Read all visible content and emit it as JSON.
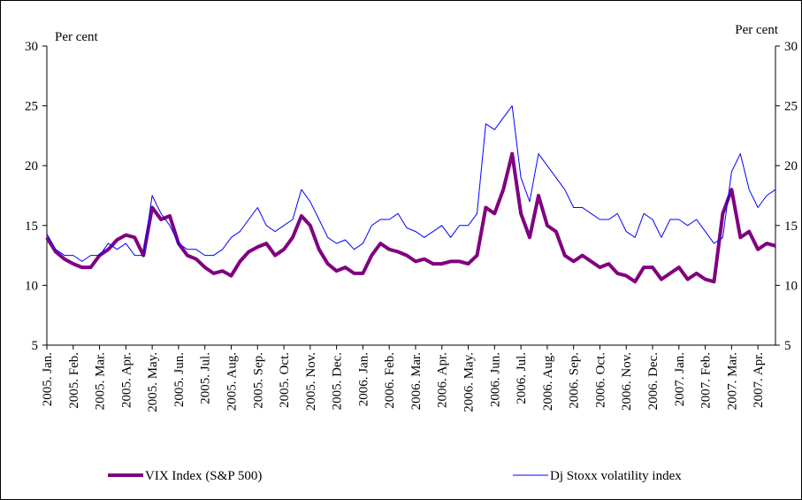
{
  "chart_data": {
    "type": "line",
    "y_label": "Per cent",
    "y2_label": "Per cent",
    "categories": [
      "2005. Jan.",
      null,
      null,
      "2005. Feb.",
      null,
      null,
      "2005. Mar.",
      null,
      null,
      "2005. Apr.",
      null,
      null,
      "2005. May.",
      null,
      null,
      "2005. Jun.",
      null,
      null,
      "2005. Jul.",
      null,
      null,
      "2005. Aug.",
      null,
      null,
      "2005. Sep.",
      null,
      null,
      "2005. Oct.",
      null,
      null,
      "2005. Nov.",
      null,
      null,
      "2005. Dec.",
      null,
      null,
      "2006. Jan.",
      null,
      null,
      "2006. Feb.",
      null,
      null,
      "2006. Mar.",
      null,
      null,
      "2006. Apr.",
      null,
      null,
      "2006. May.",
      null,
      null,
      "2006. Jun.",
      null,
      null,
      "2006. Jul.",
      null,
      null,
      "2006. Aug.",
      null,
      null,
      "2006. Sep.",
      null,
      null,
      "2006. Oct.",
      null,
      null,
      "2006. Nov.",
      null,
      null,
      "2006. Dec.",
      null,
      null,
      "2007. Jan.",
      null,
      null,
      "2007. Feb.",
      null,
      null,
      "2007. Mar.",
      null,
      null,
      "2007. Apr.",
      null,
      null
    ],
    "series": [
      {
        "name": "VIX Index (S&P 500)",
        "color": "#800080",
        "width": 4,
        "values": [
          14,
          12.8,
          12.2,
          11.8,
          11.5,
          11.5,
          12.5,
          13,
          13.8,
          14.2,
          14,
          12.5,
          16.5,
          15.5,
          15.8,
          13.5,
          12.5,
          12.2,
          11.5,
          11,
          11.2,
          10.8,
          12,
          12.8,
          13.2,
          13.5,
          12.5,
          13,
          14,
          15.8,
          15,
          13,
          11.8,
          11.2,
          11.5,
          11,
          11,
          12.5,
          13.5,
          13,
          12.8,
          12.5,
          12,
          12.2,
          11.8,
          11.8,
          12,
          12,
          11.8,
          12.5,
          16.5,
          16,
          18,
          21,
          16,
          14,
          17.5,
          15,
          14.5,
          12.5,
          12,
          12.5,
          12,
          11.5,
          11.8,
          11,
          10.8,
          10.3,
          11.5,
          11.5,
          10.5,
          11,
          11.5,
          10.5,
          11,
          10.5,
          10.3,
          16,
          18,
          14,
          14.5,
          13,
          13.5,
          13.3
        ]
      },
      {
        "name": "Dj Stoxx volatility index",
        "color": "#0000ff",
        "width": 1,
        "values": [
          14.3,
          13,
          12.5,
          12.5,
          12,
          12.5,
          12.5,
          13.5,
          13,
          13.5,
          12.5,
          12.5,
          17.5,
          16,
          15,
          13.5,
          13,
          13,
          12.5,
          12.5,
          13,
          14,
          14.5,
          15.5,
          16.5,
          15,
          14.5,
          15,
          15.5,
          18,
          17,
          15.5,
          14,
          13.5,
          13.8,
          13,
          13.5,
          15,
          15.5,
          15.5,
          16,
          14.8,
          14.5,
          14,
          14.5,
          15,
          14,
          15,
          15,
          16,
          23.5,
          23,
          24,
          25,
          19,
          17,
          21,
          20,
          19,
          18,
          16.5,
          16.5,
          16,
          15.5,
          15.5,
          16,
          14.5,
          14,
          16,
          15.5,
          14,
          15.5,
          15.5,
          15,
          15.5,
          14.5,
          13.5,
          14,
          19.5,
          21,
          18,
          16.5,
          17.5,
          18
        ]
      }
    ],
    "ylim": [
      5,
      30
    ],
    "yticks": [
      5,
      10,
      15,
      20,
      25,
      30
    ],
    "y2lim": [
      5,
      30
    ],
    "y2ticks": [
      5,
      10,
      15,
      20,
      25,
      30
    ]
  }
}
